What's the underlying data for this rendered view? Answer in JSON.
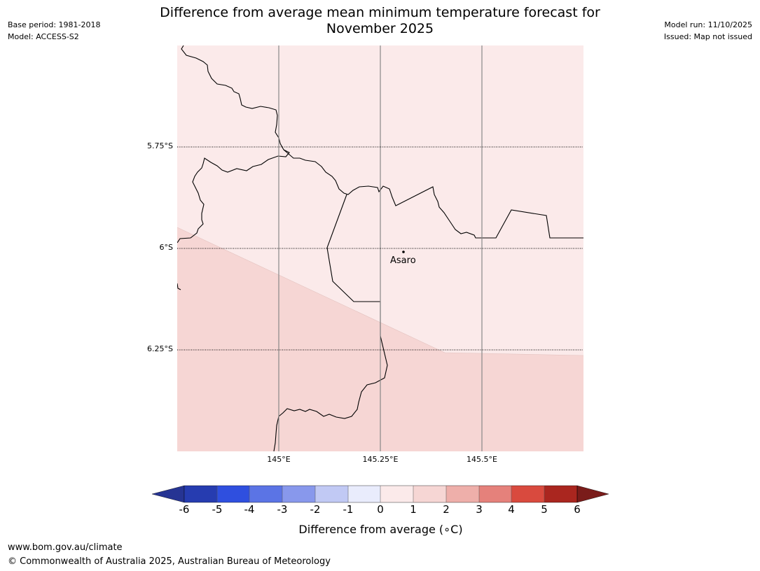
{
  "header": {
    "base_period": "Base period: 1981-2018",
    "model": "Model: ACCESS-S2",
    "model_run": "Model run: 11/10/2025",
    "issued": "Issued: Map not issued"
  },
  "title": {
    "line1": "Difference from average mean minimum temperature forecast for",
    "line2": "November 2025"
  },
  "map": {
    "latitude_labels": [
      "5.75°S",
      "6°S",
      "6.25°S"
    ],
    "longitude_labels": [
      "145°E",
      "145.25°E",
      "145.5°E"
    ],
    "town": {
      "name": "Asaro"
    },
    "regions": [
      {
        "category": "0 to 1",
        "color": "#fbeaea"
      },
      {
        "category": "1 to 2",
        "color": "#f6d6d4"
      }
    ]
  },
  "colorbar": {
    "title": "Difference from average (∘C)",
    "ticks": [
      "-6",
      "-5",
      "-4",
      "-3",
      "-2",
      "-1",
      "0",
      "1",
      "2",
      "3",
      "4",
      "5",
      "6"
    ],
    "colors": [
      "#263493",
      "#263cb0",
      "#2f4fdf",
      "#5b74e5",
      "#8898ec",
      "#c1c9f4",
      "#e9ecfc",
      "#fbeaea",
      "#f6d6d4",
      "#eeafaa",
      "#e5817b",
      "#d94a3e",
      "#aa261f",
      "#7a1c1a"
    ]
  },
  "footer": {
    "url": "www.bom.gov.au/climate",
    "copyright": "© Commonwealth of Australia 2025, Australian Bureau of Meteorology"
  }
}
